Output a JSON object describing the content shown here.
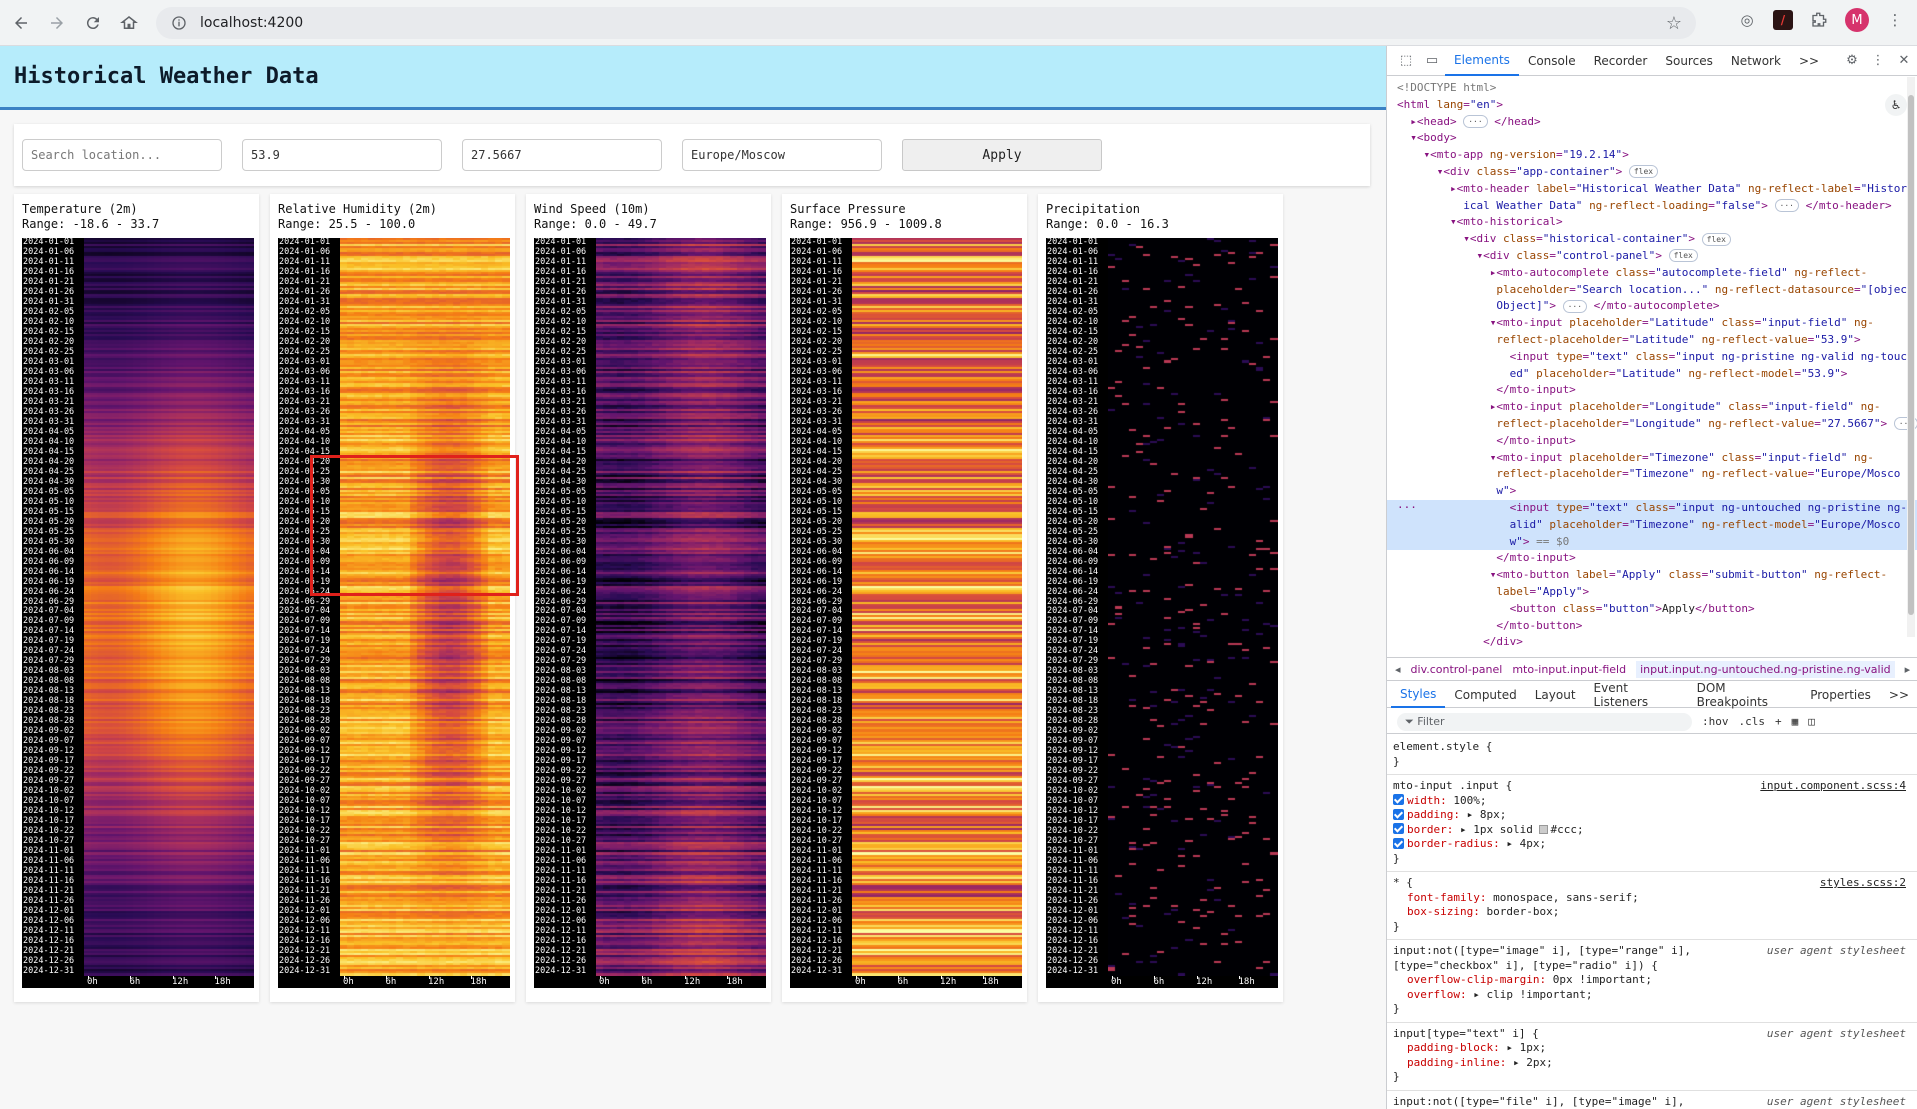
{
  "browser": {
    "url": "localhost:4200",
    "profile_initial": "M",
    "extension_letter": "/"
  },
  "app": {
    "title": "Historical Weather Data",
    "search_placeholder": "Search location...",
    "latitude": "53.9",
    "longitude": "27.5667",
    "timezone": "Europe/Moscow",
    "apply_label": "Apply"
  },
  "heatmap_common": {
    "date_labels": [
      "2024-01-01",
      "2024-01-06",
      "2024-01-11",
      "2024-01-16",
      "2024-01-21",
      "2024-01-26",
      "2024-01-31",
      "2024-02-05",
      "2024-02-10",
      "2024-02-15",
      "2024-02-20",
      "2024-02-25",
      "2024-03-01",
      "2024-03-06",
      "2024-03-11",
      "2024-03-16",
      "2024-03-21",
      "2024-03-26",
      "2024-03-31",
      "2024-04-05",
      "2024-04-10",
      "2024-04-15",
      "2024-04-20",
      "2024-04-25",
      "2024-04-30",
      "2024-05-05",
      "2024-05-10",
      "2024-05-15",
      "2024-05-20",
      "2024-05-25",
      "2024-05-30",
      "2024-06-04",
      "2024-06-09",
      "2024-06-14",
      "2024-06-19",
      "2024-06-24",
      "2024-06-29",
      "2024-07-04",
      "2024-07-09",
      "2024-07-14",
      "2024-07-19",
      "2024-07-24",
      "2024-07-29",
      "2024-08-03",
      "2024-08-08",
      "2024-08-13",
      "2024-08-18",
      "2024-08-23",
      "2024-08-28",
      "2024-09-02",
      "2024-09-07",
      "2024-09-12",
      "2024-09-17",
      "2024-09-22",
      "2024-09-27",
      "2024-10-02",
      "2024-10-07",
      "2024-10-12",
      "2024-10-17",
      "2024-10-22",
      "2024-10-27",
      "2024-11-01",
      "2024-11-06",
      "2024-11-11",
      "2024-11-16",
      "2024-11-21",
      "2024-11-26",
      "2024-12-01",
      "2024-12-06",
      "2024-12-11",
      "2024-12-16",
      "2024-12-21",
      "2024-12-26",
      "2024-12-31"
    ],
    "hour_labels": [
      "0h",
      "6h",
      "12h",
      "18h"
    ]
  },
  "charts": [
    {
      "id": "temperature",
      "title": "Temperature (2m)",
      "range": "Range: -18.6 - 33.7"
    },
    {
      "id": "humidity",
      "title": "Relative Humidity (2m)",
      "range": "Range: 25.5 - 100.0"
    },
    {
      "id": "wind",
      "title": "Wind Speed (10m)",
      "range": "Range: 0.0 - 49.7"
    },
    {
      "id": "pressure",
      "title": "Surface Pressure",
      "range": "Range: 956.9 - 1009.8"
    },
    {
      "id": "precip",
      "title": "Precipitation",
      "range": "Range: 0.0 - 16.3"
    }
  ],
  "devtools": {
    "tabs": [
      "Elements",
      "Console",
      "Recorder",
      "Sources",
      "Network"
    ],
    "more_tabs": ">>",
    "breadcrumbs": [
      "div.control-panel",
      "mto-input.input-field",
      "input.input.ng-untouched.ng-pristine.ng-valid"
    ],
    "style_tabs": [
      "Styles",
      "Computed",
      "Layout",
      "Event Listeners",
      "DOM Breakpoints",
      "Properties"
    ],
    "filter_placeholder": "Filter",
    "filter_tools": [
      ":hov",
      ".cls"
    ],
    "colors": {
      "accent": "#1a73e8",
      "header_bg": "#b6ecfb",
      "header_border": "#3b82c4"
    }
  }
}
